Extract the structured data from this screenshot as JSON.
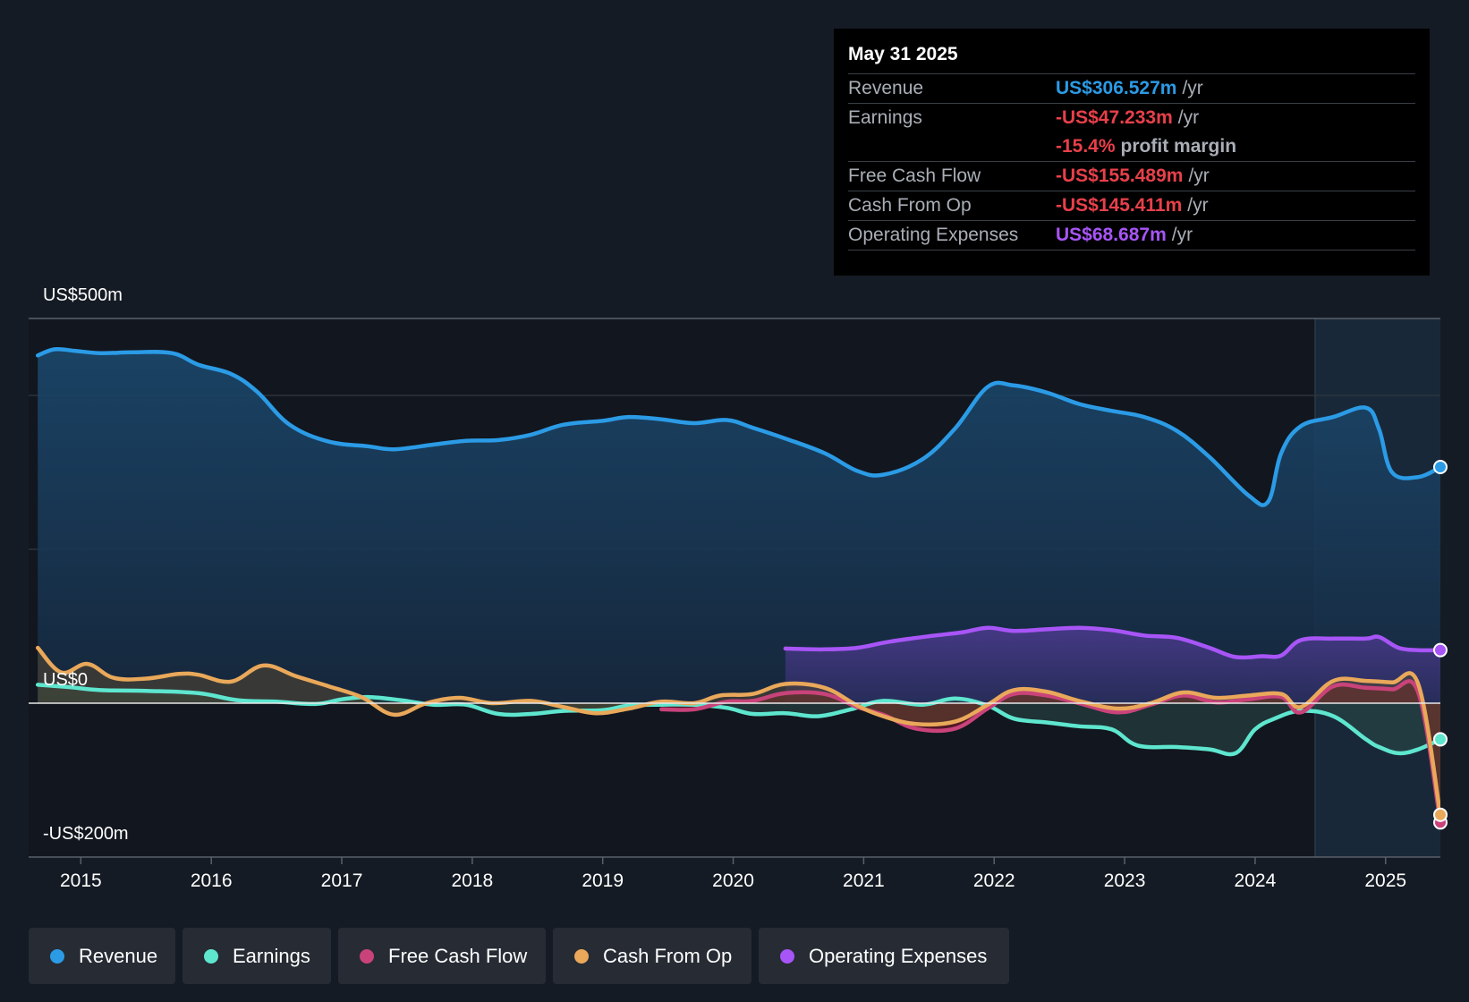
{
  "tooltip": {
    "date": "May 31 2025",
    "rows": {
      "revenue": {
        "label": "Revenue",
        "value": "US$306.527m",
        "unit": "/yr",
        "color": "#2b9be6"
      },
      "earnings": {
        "label": "Earnings",
        "value": "-US$47.233m",
        "unit": "/yr",
        "color": "#e8404a"
      },
      "margin": {
        "value": "-15.4%",
        "unit": "profit margin",
        "color": "#e8404a"
      },
      "fcf": {
        "label": "Free Cash Flow",
        "value": "-US$155.489m",
        "unit": "/yr",
        "color": "#e8404a"
      },
      "cfo": {
        "label": "Cash From Op",
        "value": "-US$145.411m",
        "unit": "/yr",
        "color": "#e8404a"
      },
      "opex": {
        "label": "Operating Expenses",
        "value": "US$68.687m",
        "unit": "/yr",
        "color": "#a855f7"
      }
    }
  },
  "legend": [
    {
      "label": "Revenue",
      "color": "#2b9be6"
    },
    {
      "label": "Earnings",
      "color": "#5ee6cf"
    },
    {
      "label": "Free Cash Flow",
      "color": "#c9437a"
    },
    {
      "label": "Cash From Op",
      "color": "#e9a85a"
    },
    {
      "label": "Operating Expenses",
      "color": "#a855f7"
    }
  ],
  "chart_data": {
    "type": "line",
    "title": "",
    "xlabel": "",
    "ylabel": "",
    "y_tick_labels": [
      "US$500m",
      "US$0",
      "-US$200m"
    ],
    "ylim": [
      -200,
      500
    ],
    "xlim": [
      2014.6,
      2025.42
    ],
    "x_tick_labels": [
      "2015",
      "2016",
      "2017",
      "2018",
      "2019",
      "2020",
      "2021",
      "2022",
      "2023",
      "2024",
      "2025"
    ],
    "x_ticks": [
      2015,
      2016,
      2017,
      2018,
      2019,
      2020,
      2021,
      2022,
      2023,
      2024,
      2025
    ],
    "series": [
      {
        "name": "Revenue",
        "color": "#2b9be6",
        "area": true,
        "x": [
          2014.67,
          2014.8,
          2014.95,
          2015.15,
          2015.4,
          2015.7,
          2015.9,
          2016.15,
          2016.35,
          2016.6,
          2016.9,
          2017.2,
          2017.4,
          2017.7,
          2017.95,
          2018.2,
          2018.45,
          2018.7,
          2019.0,
          2019.2,
          2019.45,
          2019.7,
          2019.95,
          2020.15,
          2020.4,
          2020.7,
          2020.95,
          2021.15,
          2021.45,
          2021.7,
          2021.95,
          2022.15,
          2022.4,
          2022.65,
          2022.9,
          2023.15,
          2023.4,
          2023.65,
          2023.95,
          2024.1,
          2024.2,
          2024.35,
          2024.6,
          2024.85,
          2024.95,
          2025.05,
          2025.25,
          2025.42
        ],
        "y": [
          452,
          460,
          458,
          455,
          456,
          455,
          440,
          428,
          405,
          362,
          340,
          334,
          330,
          336,
          341,
          342,
          349,
          362,
          367,
          372,
          369,
          364,
          368,
          358,
          344,
          325,
          302,
          297,
          317,
          357,
          411,
          413,
          404,
          389,
          380,
          372,
          354,
          320,
          270,
          262,
          325,
          360,
          372,
          384,
          356,
          300,
          294,
          307
        ]
      },
      {
        "name": "Operating Expenses",
        "color": "#a855f7",
        "area": true,
        "x": [
          2020.4,
          2020.7,
          2020.95,
          2021.2,
          2021.5,
          2021.75,
          2021.95,
          2022.15,
          2022.4,
          2022.65,
          2022.9,
          2023.15,
          2023.4,
          2023.65,
          2023.85,
          2024.05,
          2024.2,
          2024.35,
          2024.6,
          2024.85,
          2024.95,
          2025.1,
          2025.25,
          2025.42
        ],
        "y": [
          71,
          70,
          72,
          80,
          87,
          92,
          98,
          94,
          96,
          98,
          95,
          88,
          85,
          72,
          60,
          61,
          62,
          82,
          84,
          84,
          86,
          72,
          69,
          69
        ]
      },
      {
        "name": "Earnings",
        "color": "#5ee6cf",
        "area": true,
        "x": [
          2014.67,
          2014.9,
          2015.15,
          2015.5,
          2015.9,
          2016.2,
          2016.5,
          2016.8,
          2017.0,
          2017.2,
          2017.45,
          2017.7,
          2017.95,
          2018.2,
          2018.45,
          2018.7,
          2019.0,
          2019.2,
          2019.45,
          2019.7,
          2019.95,
          2020.15,
          2020.4,
          2020.65,
          2020.9,
          2021.15,
          2021.45,
          2021.7,
          2021.95,
          2022.15,
          2022.4,
          2022.65,
          2022.9,
          2023.1,
          2023.4,
          2023.65,
          2023.85,
          2024.0,
          2024.15,
          2024.35,
          2024.6,
          2024.85,
          2024.95,
          2025.1,
          2025.25,
          2025.42
        ],
        "y": [
          24,
          21,
          17,
          16,
          13,
          4,
          2,
          -1,
          5,
          8,
          4,
          -2,
          -2,
          -14,
          -14,
          -10,
          -9,
          -3,
          -2,
          -2,
          -6,
          -14,
          -13,
          -17,
          -8,
          3,
          -2,
          6,
          -3,
          -20,
          -25,
          -30,
          -34,
          -55,
          -57,
          -60,
          -65,
          -34,
          -20,
          -10,
          -17,
          -47,
          -57,
          -65,
          -60,
          -47
        ]
      },
      {
        "name": "Free Cash Flow",
        "color": "#c9437a",
        "area": true,
        "x": [
          2019.45,
          2019.7,
          2019.95,
          2020.15,
          2020.4,
          2020.7,
          2020.95,
          2021.15,
          2021.4,
          2021.7,
          2021.95,
          2022.15,
          2022.4,
          2022.65,
          2022.95,
          2023.2,
          2023.45,
          2023.7,
          2023.95,
          2024.2,
          2024.35,
          2024.6,
          2024.85,
          2025.05,
          2025.25,
          2025.42
        ],
        "y": [
          -8,
          -8,
          2,
          3,
          13,
          12,
          -5,
          -15,
          -33,
          -33,
          -7,
          12,
          10,
          0,
          -12,
          -2,
          10,
          1,
          5,
          8,
          -12,
          22,
          20,
          18,
          14,
          -155
        ]
      },
      {
        "name": "Cash From Op",
        "color": "#e9a85a",
        "area": true,
        "x": [
          2014.67,
          2014.85,
          2015.05,
          2015.25,
          2015.5,
          2015.75,
          2015.9,
          2016.15,
          2016.4,
          2016.65,
          2016.9,
          2017.15,
          2017.4,
          2017.65,
          2017.9,
          2018.15,
          2018.45,
          2018.7,
          2018.95,
          2019.2,
          2019.45,
          2019.7,
          2019.9,
          2020.15,
          2020.4,
          2020.7,
          2020.95,
          2021.15,
          2021.4,
          2021.7,
          2021.95,
          2022.15,
          2022.4,
          2022.65,
          2022.95,
          2023.2,
          2023.45,
          2023.7,
          2023.95,
          2024.2,
          2024.35,
          2024.6,
          2024.85,
          2025.05,
          2025.25,
          2025.42
        ],
        "y": [
          72,
          40,
          51,
          33,
          32,
          38,
          37,
          28,
          49,
          35,
          22,
          8,
          -15,
          0,
          7,
          0,
          3,
          -5,
          -13,
          -7,
          2,
          0,
          10,
          12,
          25,
          20,
          -3,
          -17,
          -27,
          -24,
          -2,
          17,
          15,
          3,
          -7,
          0,
          14,
          7,
          10,
          12,
          -5,
          29,
          29,
          27,
          25,
          -145
        ]
      }
    ]
  }
}
